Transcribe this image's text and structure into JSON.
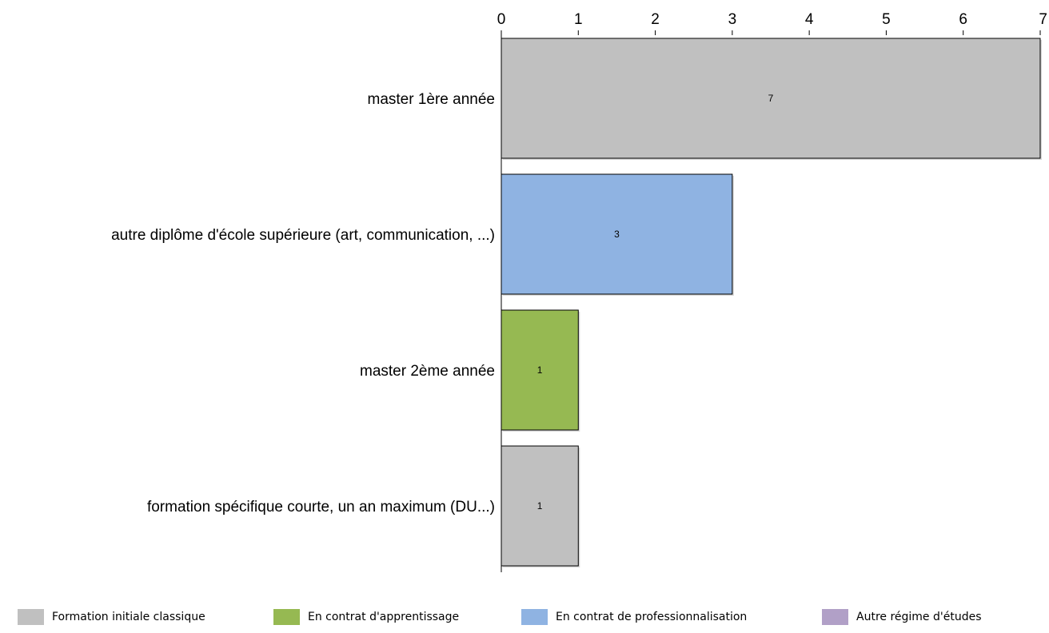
{
  "chart_data": {
    "type": "bar",
    "orientation": "horizontal",
    "title": "",
    "xlabel": "",
    "ylabel": "",
    "xlim": [
      0,
      7
    ],
    "x_ticks": [
      "0",
      "1",
      "2",
      "3",
      "4",
      "5",
      "6",
      "7"
    ],
    "grid": false,
    "legend_position": "bottom",
    "categories": [
      "master 1ère année",
      "autre diplôme d'école supérieure (art, communication, ...)",
      "master 2ème année",
      "formation spécifique courte, un an maximum (DU...)"
    ],
    "values": [
      7,
      3,
      1,
      1
    ],
    "value_labels": [
      "7",
      "3",
      "1",
      "1"
    ],
    "bar_series": [
      "Formation initiale classique",
      "En contrat de professionnalisation",
      "En contrat d'apprentissage",
      "Formation initiale classique"
    ],
    "series": [
      {
        "name": "Formation initiale classique",
        "color": "#c0c0c0"
      },
      {
        "name": "En contrat d'apprentissage",
        "color": "#96b952"
      },
      {
        "name": "En contrat de professionnalisation",
        "color": "#8fb3e2"
      },
      {
        "name": "Autre régime d'études",
        "color": "#b1a0c7"
      }
    ]
  }
}
